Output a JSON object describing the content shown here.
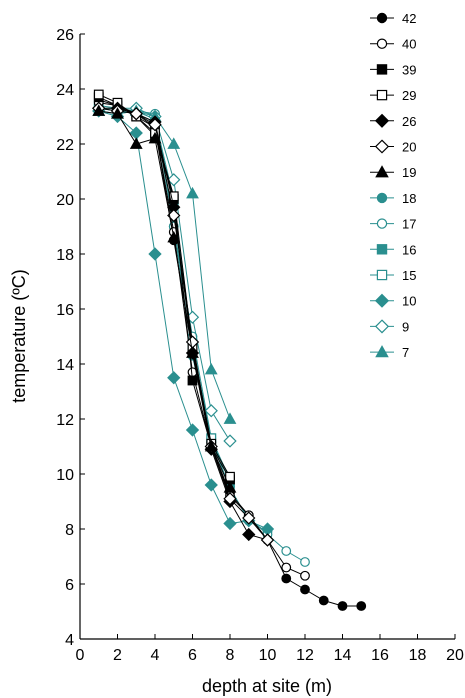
{
  "chart_data": {
    "type": "line",
    "xlabel": "depth at site (m)",
    "ylabel": "temperature (ºC)",
    "xlim": [
      0,
      20
    ],
    "ylim": [
      4,
      26
    ],
    "xticks": [
      0,
      2,
      4,
      6,
      8,
      10,
      12,
      14,
      16,
      18,
      20
    ],
    "yticks": [
      4,
      6,
      8,
      10,
      12,
      14,
      16,
      18,
      20,
      22,
      24,
      26
    ],
    "grid": false,
    "legend_position": "top-right",
    "colors": {
      "black": "#000000",
      "teal": "#2a8f8f"
    },
    "series": [
      {
        "name": "42",
        "marker": "circle",
        "filled": true,
        "color": "black",
        "x": [
          1,
          2,
          3,
          4,
          5,
          6,
          7,
          8,
          9,
          10,
          11,
          12,
          13,
          14,
          15
        ],
        "y": [
          23.6,
          23.4,
          23.1,
          22.6,
          18.5,
          14.5,
          11.0,
          9.3,
          8.5,
          7.6,
          6.2,
          5.8,
          5.4,
          5.2,
          5.2
        ]
      },
      {
        "name": "40",
        "marker": "circle",
        "filled": false,
        "color": "black",
        "x": [
          1,
          2,
          3,
          4,
          5,
          6,
          7,
          8,
          9,
          10,
          11,
          12
        ],
        "y": [
          23.5,
          23.4,
          23.0,
          22.6,
          18.8,
          13.7,
          11.0,
          9.2,
          8.5,
          7.6,
          6.6,
          6.3
        ]
      },
      {
        "name": "39",
        "marker": "square",
        "filled": true,
        "color": "black",
        "x": [
          1,
          2,
          3,
          4,
          5,
          6,
          7,
          8
        ],
        "y": [
          23.7,
          23.4,
          23.0,
          22.3,
          20.0,
          13.4,
          11.0,
          9.8
        ]
      },
      {
        "name": "29",
        "marker": "square",
        "filled": false,
        "color": "black",
        "x": [
          1,
          2,
          3,
          4,
          5,
          6,
          7,
          8
        ],
        "y": [
          23.8,
          23.5,
          23.0,
          22.4,
          20.1,
          14.6,
          11.1,
          9.9
        ]
      },
      {
        "name": "26",
        "marker": "diamond",
        "filled": true,
        "color": "black",
        "x": [
          1,
          2,
          3,
          4,
          5,
          6,
          7,
          8,
          9,
          10
        ],
        "y": [
          23.3,
          23.3,
          23.1,
          22.8,
          19.7,
          14.4,
          10.9,
          9.0,
          7.8,
          7.6
        ]
      },
      {
        "name": "20",
        "marker": "diamond",
        "filled": false,
        "color": "black",
        "x": [
          1,
          2,
          3,
          4,
          5,
          6,
          7,
          8,
          9,
          10
        ],
        "y": [
          23.3,
          23.2,
          23.1,
          22.7,
          19.4,
          14.8,
          11.0,
          9.1,
          8.4,
          7.6
        ]
      },
      {
        "name": "19",
        "marker": "triangle",
        "filled": true,
        "color": "black",
        "x": [
          1,
          2,
          3,
          4,
          5,
          6,
          7,
          8
        ],
        "y": [
          23.2,
          23.1,
          22.0,
          22.2,
          18.6,
          14.4,
          11.0,
          9.5
        ]
      },
      {
        "name": "18",
        "marker": "circle",
        "filled": true,
        "color": "teal",
        "x": [
          1,
          2,
          3,
          4,
          5,
          6,
          7,
          8,
          9,
          10
        ],
        "y": [
          23.3,
          23.2,
          23.2,
          22.9,
          19.0,
          14.3,
          11.2,
          9.5,
          8.3,
          7.9
        ]
      },
      {
        "name": "17",
        "marker": "circle",
        "filled": false,
        "color": "teal",
        "x": [
          1,
          2,
          3,
          4,
          5,
          6,
          7,
          8,
          9,
          10,
          11,
          12
        ],
        "y": [
          23.2,
          23.1,
          23.2,
          23.1,
          19.0,
          15.0,
          11.3,
          9.4,
          8.4,
          7.8,
          7.2,
          6.8
        ]
      },
      {
        "name": "16",
        "marker": "square",
        "filled": true,
        "color": "teal",
        "x": [
          1,
          2,
          3,
          4,
          5,
          6,
          7,
          8
        ],
        "y": [
          23.3,
          23.2,
          23.1,
          22.8,
          19.8,
          14.5,
          11.3,
          9.7
        ]
      },
      {
        "name": "15",
        "marker": "square",
        "filled": false,
        "color": "teal",
        "x": [
          1,
          2,
          3,
          4,
          5,
          6,
          7,
          8
        ],
        "y": [
          23.4,
          23.3,
          23.2,
          22.9,
          20.0,
          14.6,
          11.3,
          9.8
        ]
      },
      {
        "name": "10",
        "marker": "diamond",
        "filled": true,
        "color": "teal",
        "x": [
          1,
          2,
          3,
          4,
          5,
          6,
          7,
          8,
          9,
          10
        ],
        "y": [
          23.2,
          23.0,
          22.4,
          18.0,
          13.5,
          11.6,
          9.6,
          8.2,
          8.3,
          8.0
        ]
      },
      {
        "name": "9",
        "marker": "diamond",
        "filled": false,
        "color": "teal",
        "x": [
          1,
          2,
          3,
          4,
          5,
          6,
          7,
          8
        ],
        "y": [
          23.3,
          23.3,
          23.3,
          23.0,
          20.7,
          15.7,
          12.3,
          11.2
        ]
      },
      {
        "name": "7",
        "marker": "triangle",
        "filled": true,
        "color": "teal",
        "x": [
          1,
          2,
          3,
          4,
          5,
          6,
          7,
          8
        ],
        "y": [
          23.2,
          23.1,
          23.2,
          23.0,
          22.0,
          20.2,
          13.8,
          12.0
        ]
      }
    ]
  }
}
